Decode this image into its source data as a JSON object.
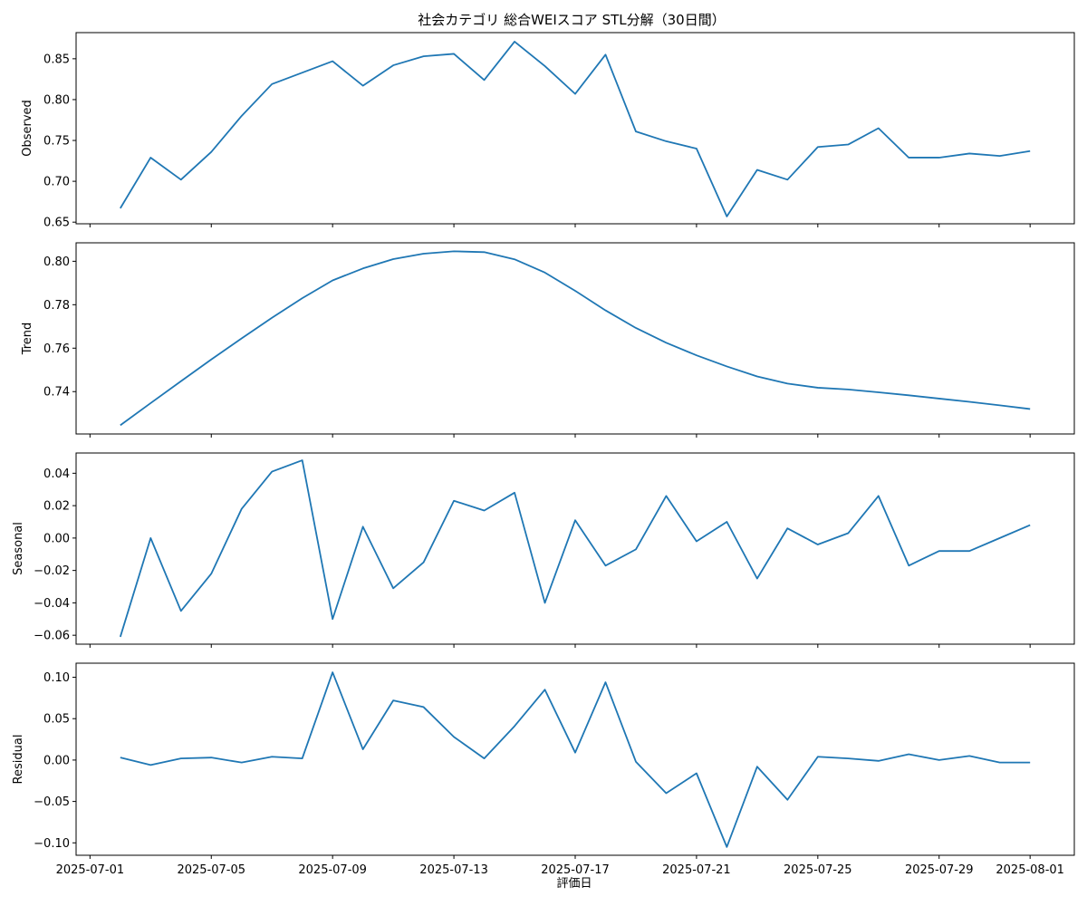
{
  "chart_data": {
    "type": "line",
    "title": "社会カテゴリ 総合WEIスコア STL分解（30日間）",
    "xlabel": "評価日",
    "line_color": "#1f77b4",
    "x": [
      "2025-07-02",
      "2025-07-03",
      "2025-07-04",
      "2025-07-05",
      "2025-07-06",
      "2025-07-07",
      "2025-07-08",
      "2025-07-09",
      "2025-07-10",
      "2025-07-11",
      "2025-07-12",
      "2025-07-13",
      "2025-07-14",
      "2025-07-15",
      "2025-07-16",
      "2025-07-17",
      "2025-07-18",
      "2025-07-19",
      "2025-07-20",
      "2025-07-21",
      "2025-07-22",
      "2025-07-23",
      "2025-07-24",
      "2025-07-25",
      "2025-07-26",
      "2025-07-27",
      "2025-07-28",
      "2025-07-29",
      "2025-07-30",
      "2025-07-31",
      "2025-08-01"
    ],
    "xticks": [
      "2025-07-01",
      "2025-07-05",
      "2025-07-09",
      "2025-07-13",
      "2025-07-17",
      "2025-07-21",
      "2025-07-25",
      "2025-07-29",
      "2025-08-01"
    ],
    "xlim": [
      "2025-06-30T13:00",
      "2025-08-02T11:00"
    ],
    "panels": [
      {
        "ylabel": "Observed",
        "ylim": [
          0.648,
          0.882
        ],
        "yticks": [
          0.65,
          0.7,
          0.75,
          0.8,
          0.85
        ],
        "ytick_labels": [
          "0.65",
          "0.70",
          "0.75",
          "0.80",
          "0.85"
        ],
        "values": [
          0.667,
          0.729,
          0.702,
          0.736,
          0.78,
          0.819,
          0.833,
          0.847,
          0.817,
          0.842,
          0.853,
          0.856,
          0.824,
          0.871,
          0.841,
          0.807,
          0.855,
          0.761,
          0.749,
          0.74,
          0.657,
          0.714,
          0.702,
          0.742,
          0.745,
          0.765,
          0.729,
          0.729,
          0.734,
          0.731,
          0.737
        ]
      },
      {
        "ylabel": "Trend",
        "ylim": [
          0.7205,
          0.8085
        ],
        "yticks": [
          0.74,
          0.76,
          0.78,
          0.8
        ],
        "ytick_labels": [
          "0.74",
          "0.76",
          "0.78",
          "0.80"
        ],
        "values": [
          0.7245,
          0.7347,
          0.7448,
          0.7548,
          0.7645,
          0.774,
          0.783,
          0.7912,
          0.7967,
          0.801,
          0.8035,
          0.8046,
          0.8042,
          0.8009,
          0.7948,
          0.7864,
          0.7774,
          0.7693,
          0.7625,
          0.7567,
          0.7516,
          0.747,
          0.7437,
          0.7418,
          0.741,
          0.7397,
          0.7383,
          0.7368,
          0.7353,
          0.7337,
          0.732
        ]
      },
      {
        "ylabel": "Seasonal",
        "ylim": [
          -0.0655,
          0.0525
        ],
        "yticks": [
          -0.06,
          -0.04,
          -0.02,
          0.0,
          0.02,
          0.04
        ],
        "ytick_labels": [
          "−0.06",
          "−0.04",
          "−0.02",
          "0.00",
          "0.02",
          "0.04"
        ],
        "values": [
          -0.061,
          0.0,
          -0.045,
          -0.022,
          0.018,
          0.041,
          0.048,
          -0.05,
          0.007,
          -0.031,
          -0.015,
          0.023,
          0.017,
          0.028,
          -0.04,
          0.011,
          -0.017,
          -0.007,
          0.026,
          -0.002,
          0.01,
          -0.025,
          0.006,
          -0.004,
          0.003,
          0.026,
          -0.017,
          -0.008,
          -0.008,
          0.0,
          0.008
        ]
      },
      {
        "ylabel": "Residual",
        "ylim": [
          -0.115,
          0.117
        ],
        "yticks": [
          -0.1,
          -0.05,
          0.0,
          0.05,
          0.1
        ],
        "ytick_labels": [
          "−0.10",
          "−0.05",
          "0.00",
          "0.05",
          "0.10"
        ],
        "values": [
          0.003,
          -0.006,
          0.002,
          0.003,
          -0.003,
          0.004,
          0.002,
          0.106,
          0.013,
          0.072,
          0.064,
          0.028,
          0.002,
          0.041,
          0.085,
          0.009,
          0.094,
          -0.002,
          -0.04,
          -0.016,
          -0.105,
          -0.008,
          -0.048,
          0.004,
          0.002,
          -0.001,
          0.007,
          0.0,
          0.005,
          -0.003,
          -0.003
        ]
      }
    ]
  }
}
